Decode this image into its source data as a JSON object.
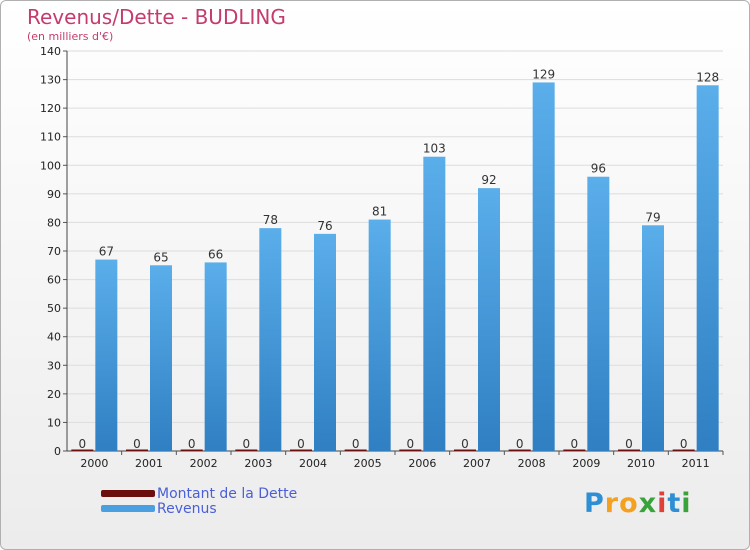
{
  "chart_data": {
    "type": "bar",
    "title": "Revenus/Dette - BUDLING",
    "subtitle": "(en milliers d'€)",
    "xlabel": "",
    "ylabel": "",
    "categories": [
      "2000",
      "2001",
      "2002",
      "2003",
      "2004",
      "2005",
      "2006",
      "2007",
      "2008",
      "2009",
      "2010",
      "2011"
    ],
    "series": [
      {
        "name": "Montant de la Dette",
        "color": "#6b0f0f",
        "values": [
          0,
          0,
          0,
          0,
          0,
          0,
          0,
          0,
          0,
          0,
          0,
          0
        ]
      },
      {
        "name": "Revenus",
        "color": "#4a9fe0",
        "values": [
          67,
          65,
          66,
          78,
          76,
          81,
          103,
          92,
          129,
          96,
          79,
          128
        ]
      }
    ],
    "ylim": [
      0,
      140
    ],
    "yticks": [
      0,
      10,
      20,
      30,
      40,
      50,
      60,
      70,
      80,
      90,
      100,
      110,
      120,
      130,
      140
    ],
    "grid": true,
    "legend_position": "bottom-left"
  },
  "logo": {
    "letters": [
      "P",
      "r",
      "o",
      "x",
      "i",
      "t",
      "i"
    ],
    "colors": [
      "#2f8fd4",
      "#f4a020",
      "#f4a020",
      "#3aa23a",
      "#e0403a",
      "#2f8fd4",
      "#3aa23a"
    ]
  }
}
